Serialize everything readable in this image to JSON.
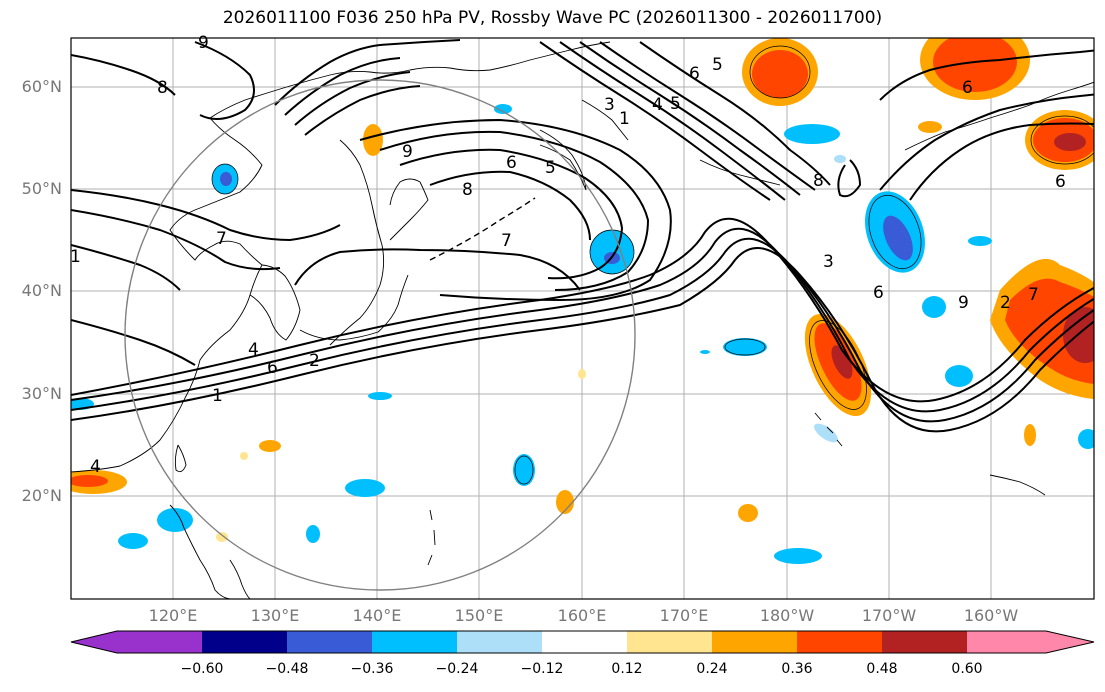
{
  "title": "2026011100 F036 250 hPa PV, Rossby Wave PC (2026011300 - 2026011700)",
  "lat_labels": [
    "60°N",
    "50°N",
    "40°N",
    "30°N",
    "20°N"
  ],
  "lon_labels": [
    "120°E",
    "130°E",
    "140°E",
    "150°E",
    "160°E",
    "170°E",
    "180°W",
    "170°W",
    "160°W"
  ],
  "contour_labels": [
    "9",
    "8",
    "7",
    "6",
    "8",
    "6",
    "5",
    "7",
    "4",
    "1",
    "1",
    "2",
    "3",
    "6",
    "5",
    "4",
    "5",
    "6",
    "8",
    "3",
    "6",
    "9",
    "7",
    "6",
    "1",
    "4",
    "9",
    "2"
  ],
  "colorbar": {
    "ticks": [
      "−0.60",
      "−0.48",
      "−0.36",
      "−0.24",
      "−0.12",
      "0.12",
      "0.24",
      "0.36",
      "0.48",
      "0.60"
    ],
    "colors": [
      "#9932CC",
      "#00008B",
      "#3A5BD6",
      "#00BFFF",
      "#ADDFF8",
      "#FFFFFF",
      "#FFE58F",
      "#FFA500",
      "#FF4500",
      "#B22222",
      "#FF88AA"
    ]
  }
}
